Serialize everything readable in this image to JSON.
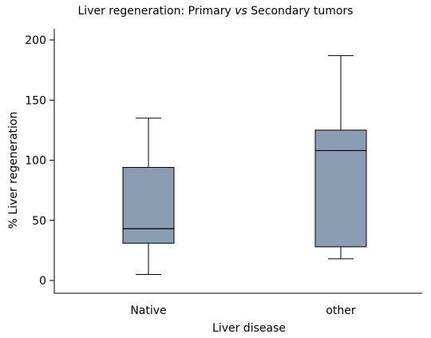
{
  "chart_data": {
    "type": "box",
    "title_parts": [
      "Liver regeneration: Primary ",
      "vs",
      " Secondary tumors"
    ],
    "xlabel": "Liver disease",
    "ylabel": "% Liver regeneration",
    "ylim": [
      -10,
      205
    ],
    "yticks": [
      0,
      50,
      100,
      150,
      200
    ],
    "categories": [
      "Native",
      "other"
    ],
    "boxes": [
      {
        "label": "Native",
        "whisker_low": 5,
        "q1": 31,
        "median": 43,
        "q3": 94,
        "whisker_high": 135
      },
      {
        "label": "other",
        "whisker_low": 18,
        "q1": 28,
        "median": 108,
        "q3": 125,
        "whisker_high": 187
      }
    ],
    "box_color": "#8a9db2",
    "grid": false
  }
}
